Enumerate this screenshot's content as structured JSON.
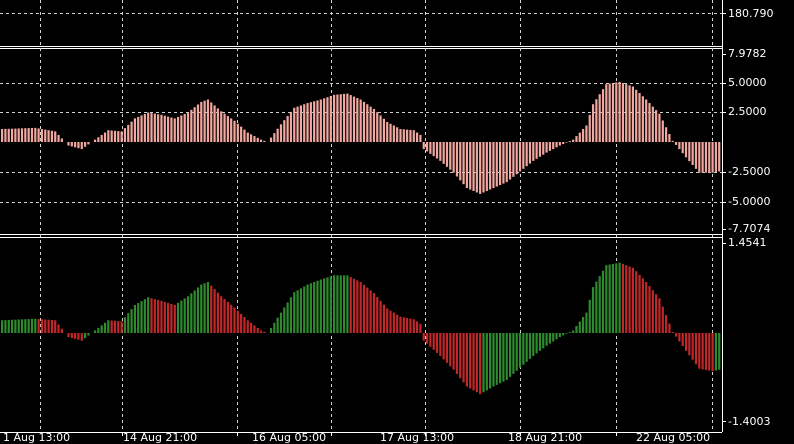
{
  "colors": {
    "background": "#000000",
    "axis": "#ffffff",
    "grid": "#d0d0d0",
    "osma_bar": "#f2a8a0",
    "bar_up": "#2e8b2e",
    "bar_down": "#c0282a",
    "tick_mark": "#ffffff"
  },
  "chart_data": [
    {
      "type": "line",
      "panel": "price-window-bottom",
      "yticks": [
        180.79
      ],
      "ytick_labels": [
        "180.790"
      ],
      "series": []
    },
    {
      "type": "bar",
      "panel": "osma-histogram",
      "ylim": [
        -7.7074,
        7.9782
      ],
      "yticks": [
        7.9782,
        5.0,
        2.5,
        -2.5,
        -5.0,
        -7.7074
      ],
      "ytick_labels": [
        "7.9782",
        "5.0000",
        "2.5000",
        "-2.5000",
        "-5.0000",
        "-7.7074"
      ],
      "grid": true,
      "keypoints": [
        [
          0,
          1.1
        ],
        [
          10,
          1.2
        ],
        [
          16,
          0.9
        ],
        [
          20,
          -0.3
        ],
        [
          24,
          -0.6
        ],
        [
          28,
          0.2
        ],
        [
          32,
          1.0
        ],
        [
          36,
          0.9
        ],
        [
          40,
          2.0
        ],
        [
          44,
          2.5
        ],
        [
          48,
          2.3
        ],
        [
          52,
          2.0
        ],
        [
          56,
          2.5
        ],
        [
          60,
          3.4
        ],
        [
          62,
          3.6
        ],
        [
          66,
          2.6
        ],
        [
          70,
          1.8
        ],
        [
          74,
          0.8
        ],
        [
          78,
          0.2
        ],
        [
          80,
          0.0
        ],
        [
          84,
          1.5
        ],
        [
          88,
          2.9
        ],
        [
          92,
          3.3
        ],
        [
          96,
          3.6
        ],
        [
          100,
          4.0
        ],
        [
          104,
          4.1
        ],
        [
          108,
          3.6
        ],
        [
          112,
          2.8
        ],
        [
          116,
          1.7
        ],
        [
          120,
          1.1
        ],
        [
          124,
          1.0
        ],
        [
          126,
          0.6
        ],
        [
          127,
          -0.6
        ],
        [
          132,
          -1.6
        ],
        [
          136,
          -2.6
        ],
        [
          140,
          -3.9
        ],
        [
          144,
          -4.4
        ],
        [
          148,
          -3.9
        ],
        [
          152,
          -3.4
        ],
        [
          156,
          -2.5
        ],
        [
          160,
          -1.6
        ],
        [
          164,
          -0.9
        ],
        [
          168,
          -0.3
        ],
        [
          172,
          0.2
        ],
        [
          176,
          1.4
        ],
        [
          178,
          3.2
        ],
        [
          182,
          4.9
        ],
        [
          186,
          5.1
        ],
        [
          190,
          4.7
        ],
        [
          194,
          3.6
        ],
        [
          198,
          2.4
        ],
        [
          202,
          0.1
        ],
        [
          206,
          -1.3
        ],
        [
          210,
          -2.6
        ],
        [
          214,
          -2.6
        ],
        [
          216,
          -2.5
        ]
      ]
    },
    {
      "type": "bar",
      "panel": "colored-histogram",
      "ylim": [
        -1.4003,
        1.4541
      ],
      "yticks": [
        1.4541,
        -1.4003
      ],
      "ytick_labels": [
        "1.4541",
        "-1.4003"
      ],
      "grid": true,
      "x_ticks": [
        "1 Aug 13:00",
        "14 Aug 21:00",
        "16 Aug 05:00",
        "17 Aug 13:00",
        "18 Aug 21:00",
        "22 Aug 05:00"
      ],
      "keypoints": [
        [
          0,
          0.25
        ],
        [
          10,
          0.28
        ],
        [
          16,
          0.25
        ],
        [
          20,
          -0.08
        ],
        [
          24,
          -0.15
        ],
        [
          28,
          0.05
        ],
        [
          32,
          0.25
        ],
        [
          36,
          0.23
        ],
        [
          40,
          0.55
        ],
        [
          44,
          0.7
        ],
        [
          48,
          0.63
        ],
        [
          52,
          0.55
        ],
        [
          56,
          0.72
        ],
        [
          60,
          0.95
        ],
        [
          62,
          1.0
        ],
        [
          66,
          0.72
        ],
        [
          70,
          0.5
        ],
        [
          74,
          0.25
        ],
        [
          78,
          0.05
        ],
        [
          80,
          0.0
        ],
        [
          84,
          0.4
        ],
        [
          88,
          0.8
        ],
        [
          92,
          0.95
        ],
        [
          96,
          1.05
        ],
        [
          100,
          1.13
        ],
        [
          104,
          1.13
        ],
        [
          108,
          1.0
        ],
        [
          112,
          0.78
        ],
        [
          116,
          0.48
        ],
        [
          120,
          0.32
        ],
        [
          124,
          0.27
        ],
        [
          126,
          0.18
        ],
        [
          127,
          -0.15
        ],
        [
          132,
          -0.45
        ],
        [
          136,
          -0.72
        ],
        [
          140,
          -1.05
        ],
        [
          144,
          -1.2
        ],
        [
          148,
          -1.05
        ],
        [
          152,
          -0.92
        ],
        [
          156,
          -0.68
        ],
        [
          160,
          -0.45
        ],
        [
          164,
          -0.25
        ],
        [
          168,
          -0.08
        ],
        [
          172,
          0.05
        ],
        [
          176,
          0.4
        ],
        [
          178,
          0.9
        ],
        [
          182,
          1.33
        ],
        [
          186,
          1.38
        ],
        [
          190,
          1.28
        ],
        [
          194,
          1.0
        ],
        [
          198,
          0.68
        ],
        [
          202,
          0.02
        ],
        [
          206,
          -0.35
        ],
        [
          210,
          -0.7
        ],
        [
          214,
          -0.75
        ],
        [
          216,
          -0.72
        ]
      ]
    }
  ]
}
